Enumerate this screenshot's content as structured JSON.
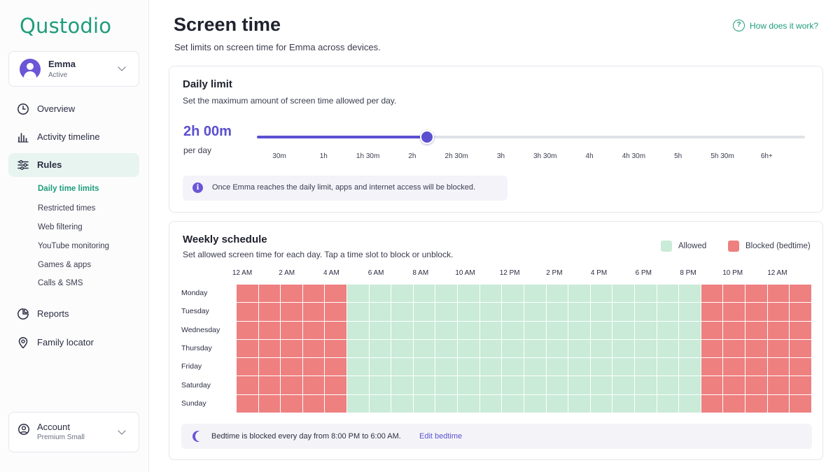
{
  "brand": {
    "logo": "Qustodio",
    "accent": "#1f9d7a",
    "purple": "#5b4fd1"
  },
  "profile": {
    "name": "Emma",
    "status": "Active"
  },
  "nav": {
    "items": [
      {
        "label": "Overview",
        "icon": "clock-icon"
      },
      {
        "label": "Activity timeline",
        "icon": "bar-chart-icon"
      },
      {
        "label": "Rules",
        "icon": "sliders-icon"
      },
      {
        "label": "Reports",
        "icon": "pie-chart-icon"
      },
      {
        "label": "Family locator",
        "icon": "map-pin-icon"
      }
    ],
    "sub_items": [
      "Daily time limits",
      "Restricted times",
      "Web filtering",
      "YouTube monitoring",
      "Games & apps",
      "Calls & SMS"
    ]
  },
  "account": {
    "label": "Account",
    "plan": "Premium Small"
  },
  "page": {
    "title": "Screen time",
    "subtitle": "Set limits on screen time for Emma across devices.",
    "help": "How does it work?"
  },
  "daily_limit": {
    "title": "Daily limit",
    "description": "Set the maximum amount of screen time allowed per day.",
    "value": "2h 00m",
    "unit": "per day",
    "slider_fraction": 0.31,
    "ticks": [
      "30m",
      "1h",
      "1h 30m",
      "2h",
      "2h 30m",
      "3h",
      "3h 30m",
      "4h",
      "4h 30m",
      "5h",
      "5h 30m",
      "6h+"
    ],
    "info": "Once Emma reaches the daily limit, apps and internet access will be blocked."
  },
  "weekly": {
    "title": "Weekly schedule",
    "description": "Set allowed screen time for each day. Tap a time slot to block or unblock.",
    "legend": {
      "allowed": "Allowed",
      "blocked": "Blocked (bedtime)"
    },
    "colors": {
      "allowed": "#c9ebd8",
      "blocked": "#ee8080"
    },
    "hour_labels": [
      "12 AM",
      "2 AM",
      "4 AM",
      "6 AM",
      "8 AM",
      "10 AM",
      "12 PM",
      "2 PM",
      "4 PM",
      "6 PM",
      "8 PM",
      "10 PM",
      "12 AM"
    ],
    "days": [
      "Monday",
      "Tuesday",
      "Wednesday",
      "Thursday",
      "Friday",
      "Saturday",
      "Sunday"
    ],
    "slots_per_day": 26,
    "blocked_before_slot": 5,
    "blocked_from_slot": 21,
    "bedtime_text": "Bedtime is blocked every day from 8:00 PM to 6:00 AM.",
    "edit_label": "Edit bedtime"
  }
}
